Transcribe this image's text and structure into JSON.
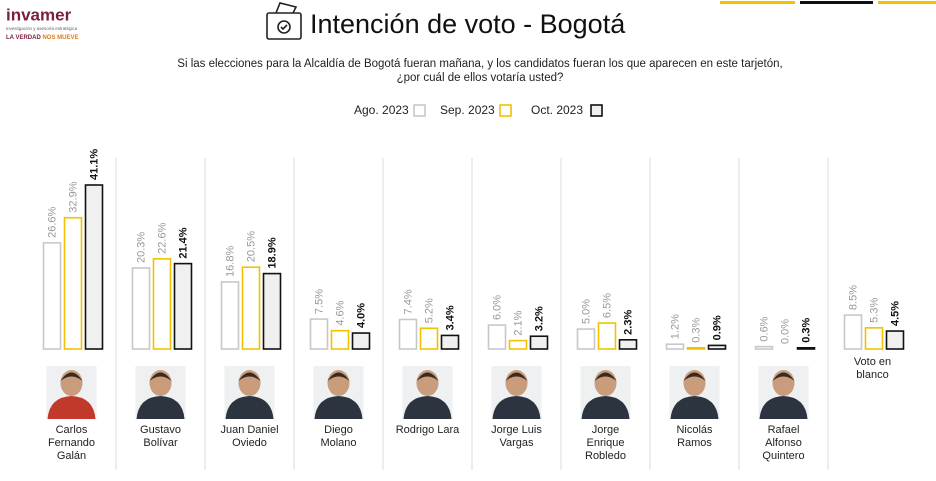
{
  "logo": {
    "name": "invamer",
    "tagline": "investigación y asesoría estratégica",
    "slogan_a": "LA VERDAD",
    "slogan_b": "NOS MUEVE"
  },
  "chart_data": {
    "type": "bar",
    "title": "Intención de voto - Bogotá",
    "subtitle": [
      "Si las elecciones para la Alcaldía de Bogotá fueran mañana, y los candidatos fueran los que aparecen en este tarjetón,",
      "¿por cuál de ellos votaría usted?"
    ],
    "categories": [
      "Carlos Fernando Galán",
      "Gustavo Bolívar",
      "Juan Daniel Oviedo",
      "Diego Molano",
      "Rodrigo Lara",
      "Jorge Luis Vargas",
      "Jorge Enrique Robledo",
      "Nicolás Ramos",
      "Rafael Alfonso Quintero",
      "Voto en blanco"
    ],
    "series": [
      {
        "name": "Ago. 2023",
        "color": "#c8c8c8",
        "values": [
          26.6,
          20.3,
          16.8,
          7.5,
          7.4,
          6.0,
          5.0,
          1.2,
          0.6,
          8.5
        ],
        "value_labels": [
          "26.6%",
          "20.3%",
          "16.8%",
          "7.5%",
          "7.4%",
          "6.0%",
          "5.0%",
          "1.2%",
          "0.6%",
          "8.5%"
        ]
      },
      {
        "name": "Sep. 2023",
        "color": "#f2c200",
        "values": [
          32.9,
          22.6,
          20.5,
          4.6,
          5.2,
          2.1,
          6.5,
          0.3,
          0.0,
          5.3
        ],
        "value_labels": [
          "32.9%",
          "22.6%",
          "20.5%",
          "4.6%",
          "5.2%",
          "2.1%",
          "6.5%",
          "0.3%",
          "0.0%",
          "5.3%"
        ]
      },
      {
        "name": "Oct. 2023",
        "color": "#111111",
        "values": [
          41.1,
          21.4,
          18.9,
          4.0,
          3.4,
          3.2,
          2.3,
          0.9,
          0.3,
          4.5
        ],
        "value_labels": [
          "41.1%",
          "21.4%",
          "18.9%",
          "4.0%",
          "3.4%",
          "3.2%",
          "2.3%",
          "0.9%",
          "0.3%",
          "4.5%"
        ]
      }
    ]
  }
}
